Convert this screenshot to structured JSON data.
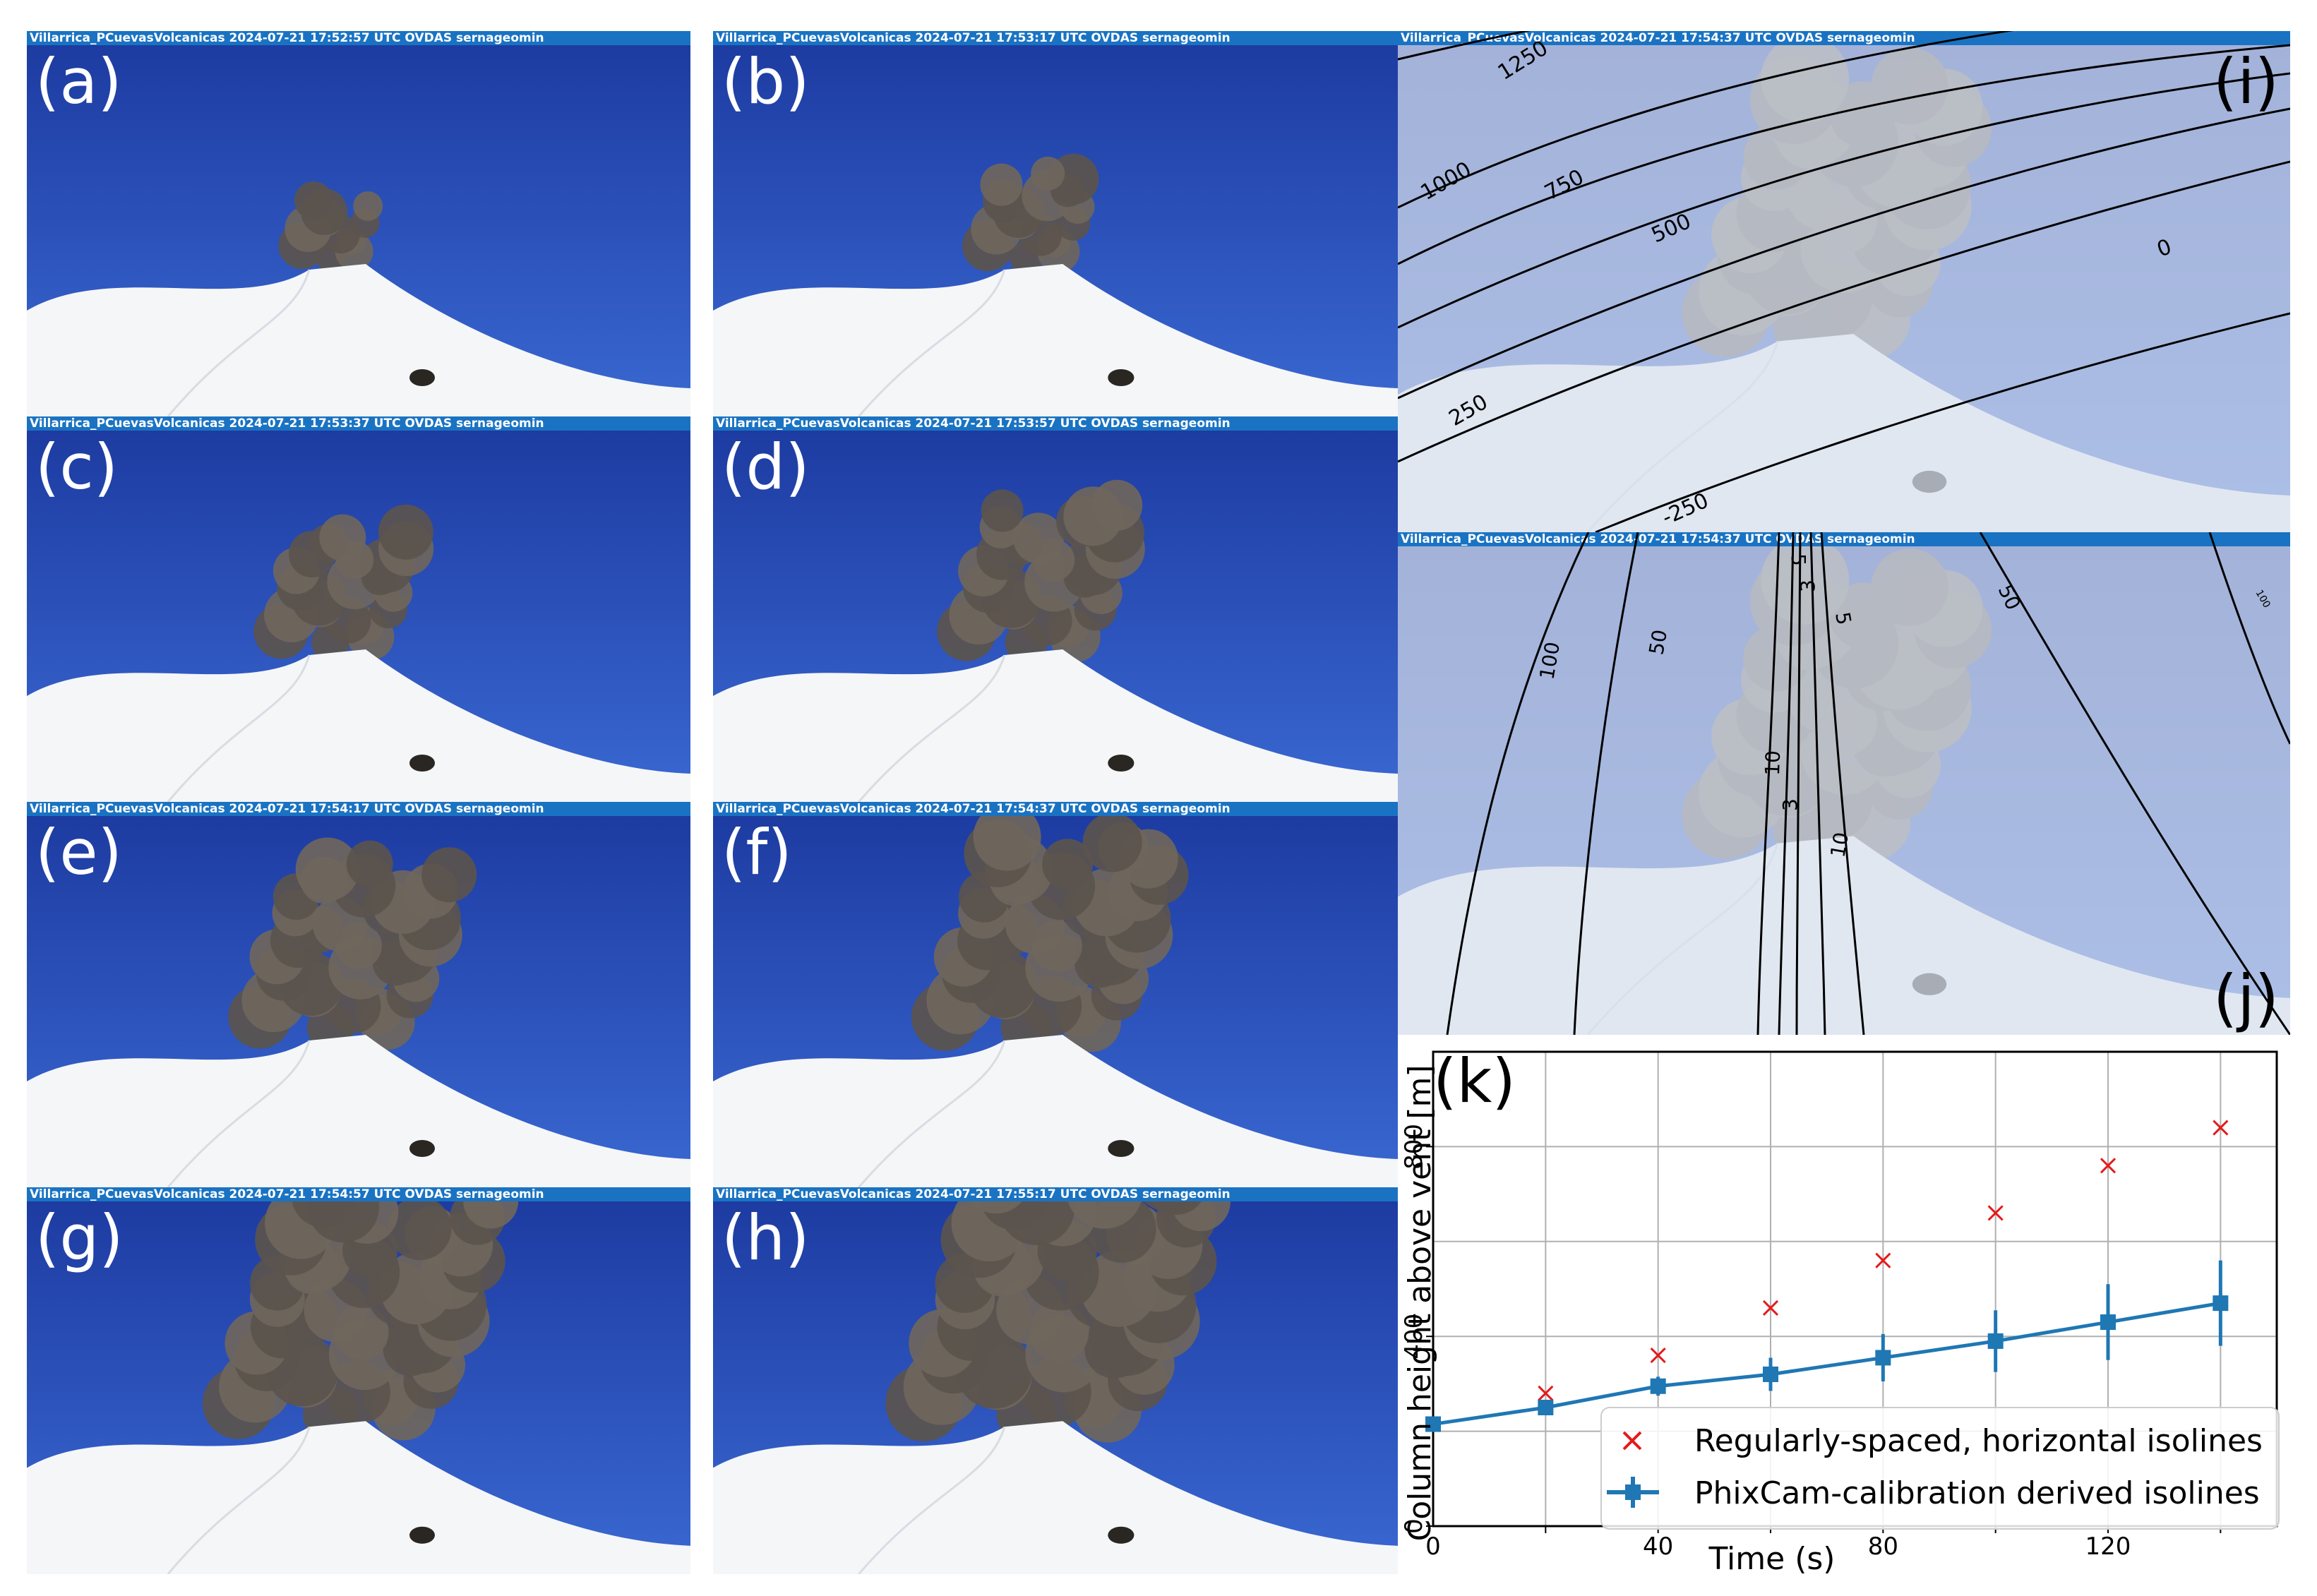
{
  "panels": {
    "a": {
      "label": "(a)",
      "header": "Villarrica_PCuevasVolcanicas  2024-07-21 17:52:57 UTC OVDAS sernageomin"
    },
    "b": {
      "label": "(b)",
      "header": "Villarrica_PCuevasVolcanicas  2024-07-21 17:53:17 UTC OVDAS sernageomin"
    },
    "c": {
      "label": "(c)",
      "header": "Villarrica_PCuevasVolcanicas  2024-07-21 17:53:37 UTC OVDAS sernageomin"
    },
    "d": {
      "label": "(d)",
      "header": "Villarrica_PCuevasVolcanicas  2024-07-21 17:53:57 UTC OVDAS sernageomin"
    },
    "e": {
      "label": "(e)",
      "header": "Villarrica_PCuevasVolcanicas  2024-07-21 17:54:17 UTC OVDAS sernageomin"
    },
    "f": {
      "label": "(f)",
      "header": "Villarrica_PCuevasVolcanicas  2024-07-21 17:54:37 UTC OVDAS sernageomin"
    },
    "g": {
      "label": "(g)",
      "header": "Villarrica_PCuevasVolcanicas  2024-07-21 17:54:57 UTC OVDAS sernageomin"
    },
    "h": {
      "label": "(h)",
      "header": "Villarrica_PCuevasVolcanicas  2024-07-21 17:55:17 UTC OVDAS sernageomin"
    },
    "i": {
      "label": "(i)",
      "header": "Villarrica_PCuevasVolcanicas  2024-07-21 17:54:37 UTC OVDAS sernageomin",
      "isolines": [
        "1250",
        "1000",
        "750",
        "500",
        "0",
        "250",
        "-250"
      ]
    },
    "j": {
      "label": "(j)",
      "header": "Villarrica_PCuevasVolcanicas  2024-07-21 17:54:37 UTC OVDAS sernageomin",
      "isolines": [
        "100",
        "50",
        "10",
        "5",
        "3",
        "3",
        "5",
        "10",
        "50",
        "100"
      ]
    }
  },
  "colors": {
    "sky": "#2850bf",
    "header_bar": "#1a73c2",
    "snow": "#f4f6f8",
    "plume": "#6f665c",
    "overlay": "#c6d1e6",
    "regular_series": "#e41a1c",
    "phixcam_series": "#1f77b4"
  },
  "chart_data": {
    "type": "scatter",
    "panel_label": "(k)",
    "xlabel": "Time (s)",
    "ylabel": "Column height above vent [m]",
    "xlim": [
      0,
      150
    ],
    "ylim": [
      0,
      1000
    ],
    "xticks": [
      0,
      40,
      80,
      120
    ],
    "yticks": [
      0,
      400,
      800
    ],
    "grid": true,
    "legend_position": "bottom-right",
    "series": [
      {
        "name": "Regularly-spaced, horizontal isolines",
        "marker": "x",
        "x": [
          20,
          40,
          60,
          80,
          100,
          120,
          140
        ],
        "y": [
          280,
          360,
          460,
          560,
          660,
          760,
          840
        ]
      },
      {
        "name": "PhixCam-calibration derived isolines",
        "marker": "square-line-errorbar",
        "x": [
          0,
          20,
          40,
          60,
          80,
          100,
          120,
          140
        ],
        "y": [
          215,
          250,
          295,
          320,
          355,
          390,
          430,
          470
        ],
        "error": [
          0,
          15,
          20,
          35,
          50,
          65,
          80,
          90
        ]
      }
    ]
  }
}
